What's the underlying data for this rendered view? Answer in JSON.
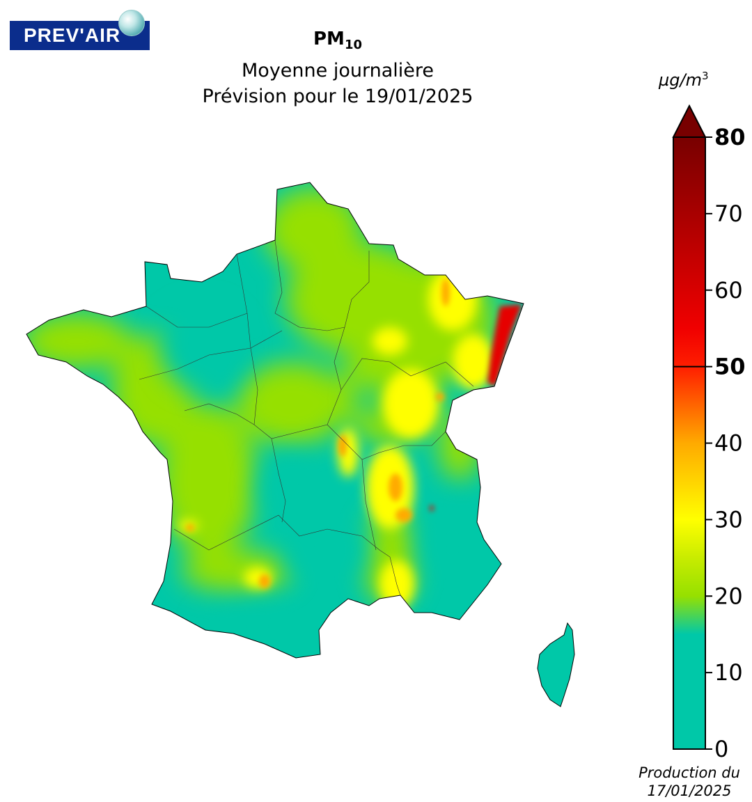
{
  "logo": {
    "text": "PREV'AIR"
  },
  "title": {
    "pollutant": "PM",
    "pollutant_sub": "10",
    "line1": "Moyenne journalière",
    "line2": "Prévision pour le 19/01/2025"
  },
  "unit": {
    "base": "µg/m",
    "exp": "3"
  },
  "production": {
    "line1": "Production du",
    "line2": "17/01/2025"
  },
  "colorbar": {
    "min": 0,
    "max": 80,
    "extend": "max",
    "threshold": 50,
    "ticks": [
      {
        "value": 0,
        "label": "0",
        "bold": false
      },
      {
        "value": 10,
        "label": "10",
        "bold": false
      },
      {
        "value": 20,
        "label": "20",
        "bold": false
      },
      {
        "value": 30,
        "label": "30",
        "bold": false
      },
      {
        "value": 40,
        "label": "40",
        "bold": false
      },
      {
        "value": 50,
        "label": "50",
        "bold": true
      },
      {
        "value": 60,
        "label": "60",
        "bold": false
      },
      {
        "value": 70,
        "label": "70",
        "bold": false
      },
      {
        "value": 80,
        "label": "80",
        "bold": true
      }
    ],
    "stops": [
      {
        "value": 0,
        "color": "#00c8a8"
      },
      {
        "value": 15,
        "color": "#00c8a8"
      },
      {
        "value": 20,
        "color": "#96e000"
      },
      {
        "value": 25,
        "color": "#c8ec00"
      },
      {
        "value": 30,
        "color": "#ffff00"
      },
      {
        "value": 35,
        "color": "#ffd400"
      },
      {
        "value": 40,
        "color": "#ffaa00"
      },
      {
        "value": 45,
        "color": "#ff6400"
      },
      {
        "value": 50,
        "color": "#ff1e00"
      },
      {
        "value": 55,
        "color": "#f00000"
      },
      {
        "value": 60,
        "color": "#d80000"
      },
      {
        "value": 70,
        "color": "#a80000"
      },
      {
        "value": 80,
        "color": "#780000"
      }
    ],
    "over_color": "#780000"
  },
  "colors": {
    "low": "#00c8a8",
    "moderate": "#96e000",
    "elevated": "#ffff00",
    "high": "#ffaa00",
    "very_high": "#ff1e00",
    "extreme": "#780000"
  }
}
